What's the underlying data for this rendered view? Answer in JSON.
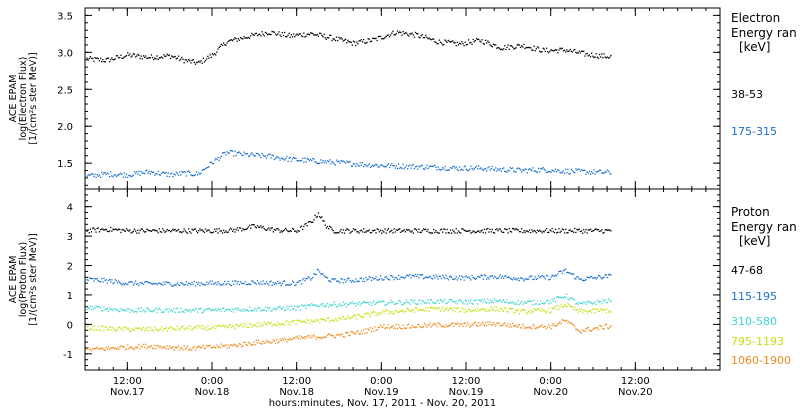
{
  "footer_label": "hours:minutes, Nov. 17, 2011 - Nov. 20, 2011",
  "chart_data": [
    {
      "type": "scatter",
      "ylabel_lines": [
        "ACE EPAM",
        "log(Electron Flux)",
        "[1/(cm²s ster MeV)]"
      ],
      "legend_title_lines": [
        "Electron",
        "Energy ran",
        "[keV]"
      ],
      "xlim": [
        6,
        96
      ],
      "ylim": [
        1.15,
        3.6
      ],
      "yticks": [
        1.5,
        2.0,
        2.5,
        3.0,
        3.5
      ],
      "ytick_labels": [
        "1.5",
        "2.0",
        "2.5",
        "3.0",
        "3.5"
      ],
      "x_ticks": [
        12,
        24,
        36,
        48,
        60,
        72,
        84
      ],
      "x_tick_labels": [
        [
          "12:00",
          "Nov.17"
        ],
        [
          "0:00",
          "Nov.18"
        ],
        [
          "12:00",
          "Nov.18"
        ],
        [
          "0:00",
          "Nov.19"
        ],
        [
          "12:00",
          "Nov.19"
        ],
        [
          "0:00",
          "Nov.20"
        ],
        [
          "12:00",
          "Nov.20"
        ]
      ],
      "series": [
        {
          "name": "38-53",
          "color": "#000000",
          "x": [
            6,
            9,
            12,
            15,
            18,
            20,
            22,
            24,
            26,
            29,
            32,
            35,
            38,
            41,
            44,
            47,
            50,
            53,
            56,
            59,
            62,
            65,
            68,
            71,
            74,
            77,
            80
          ],
          "y": [
            2.92,
            2.9,
            2.97,
            2.94,
            2.96,
            2.9,
            2.86,
            2.97,
            3.15,
            3.22,
            3.28,
            3.23,
            3.26,
            3.2,
            3.13,
            3.18,
            3.28,
            3.24,
            3.15,
            3.12,
            3.17,
            3.07,
            3.1,
            3.03,
            3.04,
            2.98,
            2.95
          ]
        },
        {
          "name": "175-315",
          "color": "#1a6fd1",
          "x": [
            6,
            9,
            12,
            15,
            18,
            20,
            22,
            24,
            26,
            29,
            32,
            35,
            38,
            41,
            44,
            47,
            50,
            53,
            56,
            59,
            62,
            65,
            68,
            71,
            74,
            77,
            80
          ],
          "y": [
            1.33,
            1.36,
            1.35,
            1.39,
            1.35,
            1.37,
            1.36,
            1.52,
            1.65,
            1.62,
            1.6,
            1.56,
            1.54,
            1.52,
            1.5,
            1.48,
            1.47,
            1.46,
            1.45,
            1.44,
            1.44,
            1.42,
            1.41,
            1.42,
            1.4,
            1.39,
            1.38
          ]
        }
      ]
    },
    {
      "type": "scatter",
      "ylabel_lines": [
        "ACE EPAM",
        "log(Proton Flux)",
        "[1/(cm²s ster MeV)]"
      ],
      "legend_title_lines": [
        "Proton",
        "Energy ran",
        "[keV]"
      ],
      "xlim": [
        6,
        96
      ],
      "ylim": [
        -1.55,
        4.6
      ],
      "yticks": [
        -1,
        0,
        1,
        2,
        3,
        4
      ],
      "ytick_labels": [
        "-1",
        "0",
        "1",
        "2",
        "3",
        "4"
      ],
      "x_ticks": [
        12,
        24,
        36,
        48,
        60,
        72,
        84
      ],
      "x_tick_labels": [
        [
          "12:00",
          "Nov.17"
        ],
        [
          "0:00",
          "Nov.18"
        ],
        [
          "12:00",
          "Nov.18"
        ],
        [
          "0:00",
          "Nov.19"
        ],
        [
          "12:00",
          "Nov.19"
        ],
        [
          "0:00",
          "Nov.20"
        ],
        [
          "12:00",
          "Nov.20"
        ]
      ],
      "series": [
        {
          "name": "47-68",
          "color": "#000000",
          "x": [
            6,
            9,
            12,
            15,
            18,
            21,
            24,
            27,
            30,
            33,
            36,
            38,
            39,
            40,
            41,
            44,
            48,
            52,
            56,
            60,
            64,
            68,
            72,
            76,
            80
          ],
          "y": [
            3.2,
            3.25,
            3.2,
            3.2,
            3.2,
            3.2,
            3.2,
            3.22,
            3.35,
            3.22,
            3.2,
            3.5,
            3.8,
            3.4,
            3.2,
            3.2,
            3.2,
            3.2,
            3.2,
            3.2,
            3.2,
            3.2,
            3.2,
            3.2,
            3.2
          ]
        },
        {
          "name": "115-195",
          "color": "#1a6fd1",
          "x": [
            6,
            9,
            12,
            15,
            18,
            21,
            24,
            27,
            30,
            33,
            36,
            38,
            39,
            40,
            41,
            44,
            48,
            52,
            56,
            60,
            64,
            68,
            72,
            74,
            76,
            80
          ],
          "y": [
            1.55,
            1.5,
            1.42,
            1.4,
            1.4,
            1.4,
            1.42,
            1.42,
            1.45,
            1.42,
            1.42,
            1.6,
            1.85,
            1.6,
            1.5,
            1.52,
            1.6,
            1.65,
            1.62,
            1.6,
            1.65,
            1.58,
            1.62,
            1.85,
            1.55,
            1.65
          ]
        },
        {
          "name": "310-580",
          "color": "#3ed6d0",
          "x": [
            6,
            9,
            12,
            15,
            18,
            21,
            24,
            27,
            30,
            33,
            36,
            39,
            42,
            45,
            48,
            52,
            56,
            60,
            64,
            68,
            72,
            74,
            76,
            80
          ],
          "y": [
            0.6,
            0.55,
            0.5,
            0.5,
            0.5,
            0.5,
            0.5,
            0.52,
            0.55,
            0.55,
            0.58,
            0.68,
            0.7,
            0.72,
            0.75,
            0.78,
            0.8,
            0.78,
            0.82,
            0.75,
            0.8,
            1.0,
            0.7,
            0.82
          ]
        },
        {
          "name": "795-1193",
          "color": "#c8e010",
          "x": [
            6,
            9,
            12,
            15,
            18,
            21,
            24,
            27,
            30,
            33,
            36,
            39,
            42,
            45,
            48,
            52,
            56,
            60,
            64,
            68,
            72,
            74,
            76,
            80
          ],
          "y": [
            -0.1,
            -0.12,
            -0.15,
            -0.15,
            -0.13,
            -0.1,
            -0.1,
            -0.05,
            0.0,
            0.05,
            0.1,
            0.15,
            0.2,
            0.3,
            0.42,
            0.5,
            0.55,
            0.5,
            0.55,
            0.45,
            0.5,
            0.7,
            0.45,
            0.5
          ]
        },
        {
          "name": "1060-1900",
          "color": "#f08a1c",
          "x": [
            6,
            9,
            12,
            15,
            18,
            21,
            24,
            27,
            30,
            33,
            36,
            39,
            42,
            45,
            48,
            52,
            56,
            60,
            64,
            68,
            72,
            74,
            76,
            80
          ],
          "y": [
            -0.85,
            -0.8,
            -0.75,
            -0.72,
            -0.75,
            -0.8,
            -0.75,
            -0.7,
            -0.6,
            -0.55,
            -0.45,
            -0.4,
            -0.35,
            -0.25,
            -0.05,
            -0.05,
            0.0,
            0.0,
            0.05,
            -0.05,
            -0.05,
            0.15,
            -0.2,
            -0.05
          ]
        }
      ]
    }
  ]
}
